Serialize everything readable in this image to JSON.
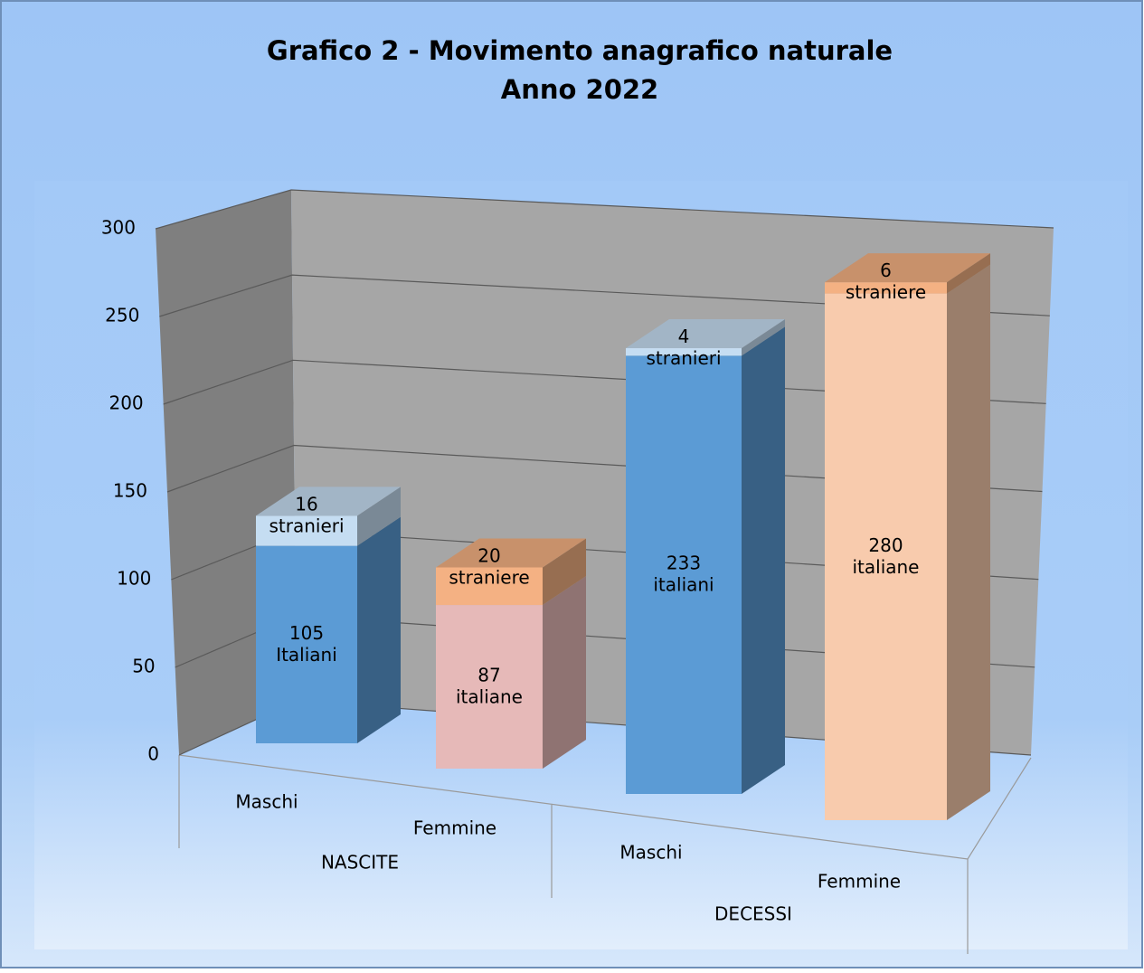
{
  "chart_data": {
    "type": "bar3d_stacked",
    "title": "Grafico 2 - Movimento anagrafico naturale",
    "subtitle": "Anno 2022",
    "categories": [
      "Maschi",
      "Femmine",
      "Maschi",
      "Femmine"
    ],
    "groups": [
      "NASCITE",
      "DECESSI"
    ],
    "series": [
      {
        "colors": [
          "#5b9bd5",
          "#e6b9b8",
          "#5b9bd5",
          "#f8cbad"
        ],
        "values": [
          105,
          87,
          233,
          280
        ],
        "value_labels": [
          "105\nItaliani",
          "87\nitaliane",
          "233\nitaliani",
          "280\nitaliane"
        ]
      },
      {
        "colors": [
          "#c5ddf2",
          "#f4b183",
          "#c5ddf2",
          "#f4b183"
        ],
        "values": [
          16,
          20,
          4,
          6
        ],
        "value_labels": [
          "16\nstranieri",
          "20\nstraniere",
          "4\nstranieri",
          "6\nstraniere"
        ]
      }
    ],
    "ylim": [
      0,
      300
    ],
    "yticks": [
      0,
      50,
      100,
      150,
      200,
      250,
      300
    ],
    "grid": true
  }
}
